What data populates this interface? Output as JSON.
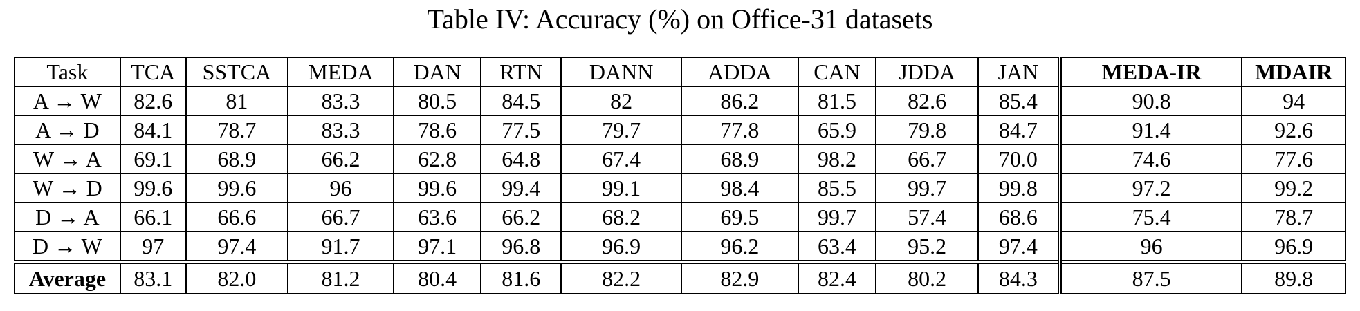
{
  "caption": "Table IV: Accuracy (%) on Office-31 datasets",
  "columns": [
    "Task",
    "TCA",
    "SSTCA",
    "MEDA",
    "DAN",
    "RTN",
    "DANN",
    "ADDA",
    "CAN",
    "JDDA",
    "JAN",
    "MEDA-IR",
    "MDAIR"
  ],
  "rows": [
    {
      "task": "A → W",
      "values": [
        "82.6",
        "81",
        "83.3",
        "80.5",
        "84.5",
        "82",
        "86.2",
        "81.5",
        "82.6",
        "85.4",
        "90.8",
        "94"
      ],
      "bold": [
        11
      ]
    },
    {
      "task": "A → D",
      "values": [
        "84.1",
        "78.7",
        "83.3",
        "78.6",
        "77.5",
        "79.7",
        "77.8",
        "65.9",
        "79.8",
        "84.7",
        "91.4",
        "92.6"
      ],
      "bold": [
        11
      ]
    },
    {
      "task": "W → A",
      "values": [
        "69.1",
        "68.9",
        "66.2",
        "62.8",
        "64.8",
        "67.4",
        "68.9",
        "98.2",
        "66.7",
        "70.0",
        "74.6",
        "77.6"
      ],
      "bold": [
        7
      ]
    },
    {
      "task": "W → D",
      "values": [
        "99.6",
        "99.6",
        "96",
        "99.6",
        "99.4",
        "99.1",
        "98.4",
        "85.5",
        "99.7",
        "99.8",
        "97.2",
        "99.2"
      ],
      "bold": [
        9
      ]
    },
    {
      "task": "D → A",
      "values": [
        "66.1",
        "66.6",
        "66.7",
        "63.6",
        "66.2",
        "68.2",
        "69.5",
        "99.7",
        "57.4",
        "68.6",
        "75.4",
        "78.7"
      ],
      "bold": [
        7
      ]
    },
    {
      "task": "D → W",
      "values": [
        "97",
        "97.4",
        "91.7",
        "97.1",
        "96.8",
        "96.9",
        "96.2",
        "63.4",
        "95.2",
        "97.4",
        "96",
        "96.9"
      ],
      "bold": [
        1,
        9
      ]
    }
  ],
  "average": {
    "task": "Average",
    "values": [
      "83.1",
      "82.0",
      "81.2",
      "80.4",
      "81.6",
      "82.2",
      "82.9",
      "82.4",
      "80.2",
      "84.3",
      "87.5",
      "89.8"
    ],
    "bold": [
      11
    ]
  }
}
